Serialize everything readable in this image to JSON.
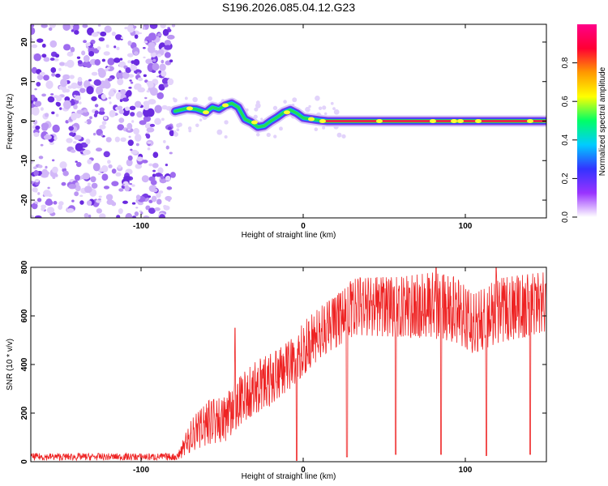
{
  "figure": {
    "title": "S196.2026.085.04.12.G23",
    "colors": {
      "line": "#ee2222",
      "frame": "#000000"
    }
  },
  "chart_data": [
    {
      "type": "heatmap",
      "name": "spectrogram",
      "xlabel": "Height of straight line (km)",
      "ylabel": "Frequency (Hz)",
      "xlim": [
        -168,
        150
      ],
      "ylim": [
        -24.5,
        24.5
      ],
      "xticks": [
        -100,
        0,
        100
      ],
      "yticks": [
        -20,
        -10,
        0,
        10,
        20
      ],
      "colorbar": {
        "label": "Normalized spectral amplitude",
        "range": [
          0,
          1
        ],
        "ticks": [
          "0.0",
          "0.2",
          "0.4",
          "0.6",
          "0.8"
        ],
        "colormap": [
          "#ffffff",
          "#9933ff",
          "#3333ff",
          "#00ccff",
          "#00ff66",
          "#ffff00",
          "#ff9900",
          "#ff0033",
          "#ff0088"
        ]
      },
      "noise_region_x": [
        -168,
        -80
      ],
      "carrier_trace": [
        {
          "x": -79,
          "y": 2.5
        },
        {
          "x": -72,
          "y": 3.2
        },
        {
          "x": -66,
          "y": 3.0
        },
        {
          "x": -60,
          "y": 2.2
        },
        {
          "x": -56,
          "y": 3.5
        },
        {
          "x": -52,
          "y": 3.0
        },
        {
          "x": -48,
          "y": 4.0
        },
        {
          "x": -44,
          "y": 4.5
        },
        {
          "x": -40,
          "y": 3.5
        },
        {
          "x": -36,
          "y": 0.5
        },
        {
          "x": -32,
          "y": -0.3
        },
        {
          "x": -28,
          "y": -1.5
        },
        {
          "x": -24,
          "y": -1.2
        },
        {
          "x": -20,
          "y": 0.0
        },
        {
          "x": -16,
          "y": 1.0
        },
        {
          "x": -12,
          "y": 2.2
        },
        {
          "x": -8,
          "y": 2.8
        },
        {
          "x": -4,
          "y": 2.0
        },
        {
          "x": 0,
          "y": 0.8
        },
        {
          "x": 5,
          "y": 0.5
        },
        {
          "x": 10,
          "y": 0.2
        },
        {
          "x": 15,
          "y": 0.0
        },
        {
          "x": 150,
          "y": 0.0
        }
      ]
    },
    {
      "type": "line",
      "name": "snr",
      "xlabel": "Height of straight line (km)",
      "ylabel": "SNR (10 * v/v)",
      "xlim": [
        -168,
        150
      ],
      "ylim": [
        0,
        800
      ],
      "xticks": [
        -100,
        0,
        100
      ],
      "yticks": [
        0,
        200,
        400,
        600,
        800
      ],
      "series": [
        {
          "name": "SNR",
          "color": "#ee2222",
          "envelope": [
            {
              "x": -168,
              "lo": 5,
              "hi": 35
            },
            {
              "x": -78,
              "lo": 5,
              "hi": 35
            },
            {
              "x": -68,
              "lo": 20,
              "hi": 190
            },
            {
              "x": -58,
              "lo": 40,
              "hi": 260
            },
            {
              "x": -48,
              "lo": 50,
              "hi": 270
            },
            {
              "x": -38,
              "lo": 120,
              "hi": 360
            },
            {
              "x": -28,
              "lo": 160,
              "hi": 420
            },
            {
              "x": -18,
              "lo": 200,
              "hi": 450
            },
            {
              "x": -8,
              "lo": 260,
              "hi": 500
            },
            {
              "x": 2,
              "lo": 330,
              "hi": 590
            },
            {
              "x": 12,
              "lo": 400,
              "hi": 650
            },
            {
              "x": 22,
              "lo": 440,
              "hi": 700
            },
            {
              "x": 32,
              "lo": 480,
              "hi": 760
            },
            {
              "x": 60,
              "lo": 460,
              "hi": 760
            },
            {
              "x": 80,
              "lo": 460,
              "hi": 780
            },
            {
              "x": 95,
              "lo": 440,
              "hi": 760
            },
            {
              "x": 105,
              "lo": 400,
              "hi": 700
            },
            {
              "x": 120,
              "lo": 440,
              "hi": 760
            },
            {
              "x": 150,
              "lo": 480,
              "hi": 780
            }
          ],
          "dropouts": [
            {
              "x": -4,
              "value": 5
            },
            {
              "x": 27,
              "value": 20
            },
            {
              "x": 57,
              "value": 30
            },
            {
              "x": 85,
              "value": 30
            },
            {
              "x": 113,
              "value": 25
            },
            {
              "x": 140,
              "value": 30
            }
          ],
          "peaks": [
            {
              "x": -42,
              "value": 550
            },
            {
              "x": 82,
              "value": 800
            },
            {
              "x": 119,
              "value": 800
            }
          ]
        }
      ]
    }
  ]
}
